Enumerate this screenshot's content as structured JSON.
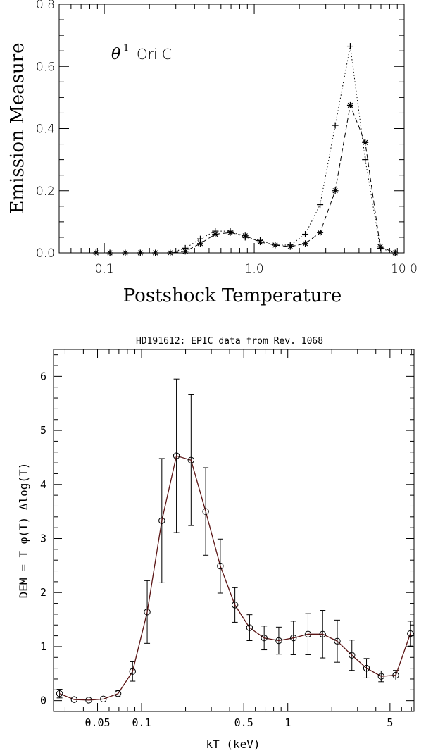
{
  "chart_data": [
    {
      "type": "scatter",
      "title": "",
      "annotation": {
        "symbol": "θ",
        "superscript": "1",
        "text": "Ori C"
      },
      "xlabel": "Postshock Temperature",
      "ylabel": "Emission Measure",
      "xscale": "log",
      "xlim": [
        0.05,
        10.0
      ],
      "ylim": [
        0.0,
        0.8
      ],
      "xtick_labels": [
        "0.1",
        "1.0",
        "10.0"
      ],
      "ytick_labels": [
        "0.0",
        "0.2",
        "0.4",
        "0.6",
        "0.8"
      ],
      "grid": false,
      "legend": "none",
      "series": [
        {
          "marker": "plus",
          "line": "dotted",
          "x": [
            0.088,
            0.109,
            0.138,
            0.174,
            0.219,
            0.275,
            0.347,
            0.437,
            0.55,
            0.692,
            0.871,
            1.096,
            1.38,
            1.74,
            2.19,
            2.75,
            3.47,
            4.37,
            5.5,
            6.92,
            8.71
          ],
          "y": [
            0.0,
            0.0,
            0.0,
            0.0,
            0.0,
            0.0,
            0.015,
            0.045,
            0.07,
            0.07,
            0.05,
            0.04,
            0.025,
            0.025,
            0.06,
            0.155,
            0.41,
            0.665,
            0.3,
            0.015,
            0.0
          ]
        },
        {
          "marker": "asterisk",
          "line": "dashed",
          "x": [
            0.088,
            0.109,
            0.138,
            0.174,
            0.219,
            0.275,
            0.347,
            0.437,
            0.55,
            0.692,
            0.871,
            1.096,
            1.38,
            1.74,
            2.19,
            2.75,
            3.47,
            4.37,
            5.5,
            6.92,
            8.71
          ],
          "y": [
            0.0,
            0.0,
            0.0,
            0.0,
            0.0,
            0.0,
            0.005,
            0.03,
            0.06,
            0.065,
            0.055,
            0.035,
            0.025,
            0.02,
            0.03,
            0.065,
            0.2,
            0.475,
            0.355,
            0.02,
            0.0
          ]
        }
      ]
    },
    {
      "type": "line",
      "title": "HD191612: EPIC data from Rev. 1068",
      "xlabel": "kT (keV)",
      "ylabel": "DEM = T φ(T) Δlog(T)",
      "xscale": "log",
      "xlim": [
        0.025,
        7.3
      ],
      "ylim": [
        -0.2,
        6.5
      ],
      "xtick_labels": [
        "0.05",
        "0.1",
        "0.5",
        "1",
        "5"
      ],
      "ytick_labels": [
        "0",
        "1",
        "2",
        "3",
        "4",
        "5",
        "6"
      ],
      "grid": false,
      "legend": "none",
      "marker": "open-circle",
      "x": [
        0.0275,
        0.0346,
        0.0435,
        0.0548,
        0.069,
        0.0868,
        0.1093,
        0.1376,
        0.1732,
        0.218,
        0.2745,
        0.3456,
        0.435,
        0.5477,
        0.6894,
        0.8679,
        1.0926,
        1.3755,
        1.7315,
        2.18,
        2.744,
        3.455,
        4.349,
        5.475,
        6.892
      ],
      "y": [
        0.13,
        0.02,
        0.01,
        0.03,
        0.13,
        0.54,
        1.64,
        3.33,
        4.53,
        4.45,
        3.5,
        2.49,
        1.77,
        1.35,
        1.16,
        1.11,
        1.16,
        1.23,
        1.23,
        1.1,
        0.84,
        0.6,
        0.45,
        0.47,
        1.24
      ],
      "y_err": [
        0.08,
        0.0,
        0.0,
        0.0,
        0.06,
        0.18,
        0.58,
        1.15,
        1.42,
        1.21,
        0.81,
        0.5,
        0.32,
        0.24,
        0.22,
        0.25,
        0.31,
        0.38,
        0.44,
        0.39,
        0.28,
        0.18,
        0.1,
        0.09,
        0.23
      ]
    }
  ]
}
